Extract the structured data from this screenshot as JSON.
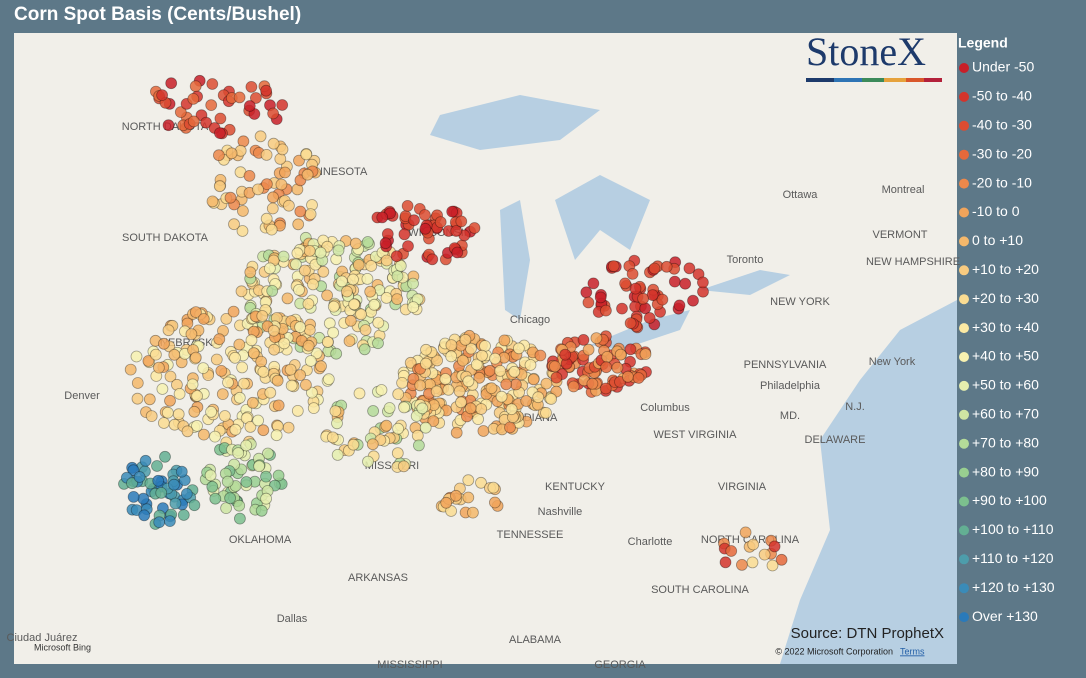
{
  "header": {
    "title": "Corn Spot Basis (Cents/Bushel)"
  },
  "logo": "StoneX",
  "legend": {
    "title": "Legend",
    "items": [
      {
        "label": "Under -50",
        "color": "#c81e28"
      },
      {
        "label": "-50 to -40",
        "color": "#d3342b"
      },
      {
        "label": "-40 to -30",
        "color": "#dc4c31"
      },
      {
        "label": "-30 to -20",
        "color": "#e5693b"
      },
      {
        "label": "-20 to -10",
        "color": "#ec884b"
      },
      {
        "label": "-10 to 0",
        "color": "#f1a45b"
      },
      {
        "label": "0 to +10",
        "color": "#f5b86b"
      },
      {
        "label": "+10 to +20",
        "color": "#f8cb80"
      },
      {
        "label": "+20 to +30",
        "color": "#fadc92"
      },
      {
        "label": "+30 to +40",
        "color": "#fbe9a3"
      },
      {
        "label": "+40 to +50",
        "color": "#f7f1b0"
      },
      {
        "label": "+50 to +60",
        "color": "#e5eeae"
      },
      {
        "label": "+60 to +70",
        "color": "#cee5a3"
      },
      {
        "label": "+70 to +80",
        "color": "#b4db99"
      },
      {
        "label": "+80 to +90",
        "color": "#98cf90"
      },
      {
        "label": "+90 to +100",
        "color": "#7cc08e"
      },
      {
        "label": "+100 to +110",
        "color": "#63af93"
      },
      {
        "label": "+110 to +120",
        "color": "#4d9dab"
      },
      {
        "label": "+120 to +130",
        "color": "#3a8bb8"
      },
      {
        "label": "Over +130",
        "color": "#2a7aba"
      }
    ]
  },
  "map_labels": [
    "NORTH DAKOTA",
    "MINNESOTA",
    "SOUTH DAKOTA",
    "WISCONSIN",
    "Ottawa",
    "Montreal",
    "VERMONT",
    "NEW HAMPSHIRE",
    "Toronto",
    "NEW YORK",
    "Chicago",
    "NEBRASKA",
    "PENNSYLVANIA",
    "New York",
    "Philadelphia",
    "Denver",
    "MD.",
    "N.J.",
    "DELAWARE",
    "Columbus",
    "WEST VIRGINIA",
    "INDIANA",
    "MISSOURI",
    "KENTUCKY",
    "VIRGINIA",
    "Nashville",
    "TENNESSEE",
    "NORTH CAROLINA",
    "Charlotte",
    "OKLAHOMA",
    "ARKANSAS",
    "SOUTH CAROLINA",
    "Dallas",
    "ALABAMA",
    "Ciudad Juárez",
    "MISSISSIPPI",
    "GEORGIA"
  ],
  "source": "Source: DTN ProphetX",
  "bing": "Microsoft Bing",
  "copyright": "© 2022 Microsoft Corporation",
  "terms": "Terms"
}
